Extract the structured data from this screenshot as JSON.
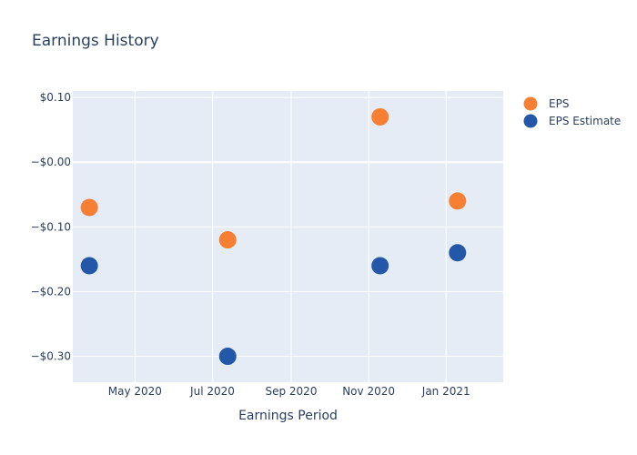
{
  "chart_data": {
    "type": "scatter",
    "title": "Earnings History",
    "xlabel": "Earnings Period",
    "ylabel": "",
    "x_range": [
      "2020-03-13",
      "2021-02-15"
    ],
    "ylim": [
      -0.34,
      0.11
    ],
    "x_ticks": [
      {
        "date": "2020-05-01",
        "label": "May 2020"
      },
      {
        "date": "2020-07-01",
        "label": "Jul 2020"
      },
      {
        "date": "2020-09-01",
        "label": "Sep 2020"
      },
      {
        "date": "2020-11-01",
        "label": "Nov 2020"
      },
      {
        "date": "2021-01-01",
        "label": "Jan 2021"
      }
    ],
    "y_ticks": [
      {
        "value": 0.1,
        "label": "$0.10"
      },
      {
        "value": 0.0,
        "label": "−$0.00"
      },
      {
        "value": -0.1,
        "label": "−$0.10"
      },
      {
        "value": -0.2,
        "label": "−$0.20"
      },
      {
        "value": -0.3,
        "label": "−$0.30"
      }
    ],
    "grid": true,
    "legend_position": "top-right",
    "series": [
      {
        "name": "EPS",
        "color": "#f77f34",
        "points": [
          {
            "x": "2020-03-26",
            "y": -0.07
          },
          {
            "x": "2020-07-13",
            "y": -0.12
          },
          {
            "x": "2020-11-10",
            "y": 0.07
          },
          {
            "x": "2021-01-10",
            "y": -0.06
          }
        ]
      },
      {
        "name": "EPS Estimate",
        "color": "#2258a7",
        "points": [
          {
            "x": "2020-03-26",
            "y": -0.16
          },
          {
            "x": "2020-07-13",
            "y": -0.3
          },
          {
            "x": "2020-11-10",
            "y": -0.16
          },
          {
            "x": "2021-01-10",
            "y": -0.14
          }
        ]
      }
    ]
  }
}
